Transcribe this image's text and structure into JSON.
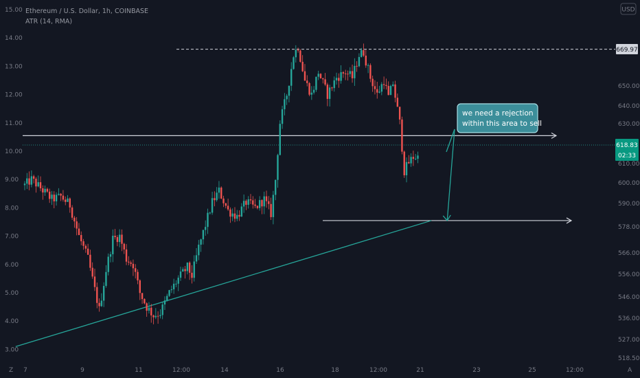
{
  "header": {
    "title": "Ethereum / U.S. Dollar, 1h, COINBASE",
    "indicator": "ATR (14, RMA)"
  },
  "currency_button": "USD",
  "price_tag": {
    "price": "618.83",
    "countdown": "02:33"
  },
  "level_tag": "669.97",
  "annotation": "we need a rejection within this area to sell",
  "annotation_lines": [
    "we need a rejection",
    "within this area to sell"
  ],
  "bottom_left_label": "Z",
  "bottom_right_label": "A",
  "colors": {
    "background": "#131722",
    "up": "#26a69a",
    "down": "#ef5350",
    "trendline": "#26a69a",
    "level": "#d1d4dc",
    "price_tag": "#089981",
    "note_bg": "#3c8e9a"
  },
  "chart_data": {
    "type": "candlestick",
    "title": "Ethereum / U.S. Dollar, 1h, COINBASE",
    "indicator": "ATR (14, RMA)",
    "left_axis": {
      "ticks": [
        "15.00",
        "14.00",
        "13.00",
        "12.00",
        "11.00",
        "10.00",
        "9.00",
        "8.00",
        "7.00",
        "6.00",
        "5.00",
        "4.00",
        "3.00"
      ],
      "range": [
        2.6,
        15.0
      ]
    },
    "right_axis": {
      "ticks": [
        "650.00",
        "640.00",
        "630.00",
        "610.00",
        "600.00",
        "590.00",
        "578.00",
        "566.00",
        "556.00",
        "546.00",
        "536.00",
        "527.00",
        "518.50"
      ]
    },
    "x_axis": {
      "ticks": [
        "7",
        "9",
        "11",
        "12:00",
        "14",
        "16",
        "18",
        "12:00",
        "21",
        "23",
        "25",
        "12:00"
      ]
    },
    "resistance_level": 669.97,
    "current_price": 618.83,
    "candle_count": 175,
    "path": [
      [
        0,
        8.8
      ],
      [
        3,
        9.0
      ],
      [
        7,
        8.7
      ],
      [
        12,
        8.3
      ],
      [
        16,
        8.4
      ],
      [
        20,
        8.1
      ],
      [
        24,
        7.0
      ],
      [
        28,
        6.2
      ],
      [
        31,
        5.1
      ],
      [
        33,
        4.4
      ],
      [
        36,
        5.8
      ],
      [
        39,
        6.9
      ],
      [
        42,
        7.0
      ],
      [
        45,
        6.2
      ],
      [
        48,
        6.0
      ],
      [
        51,
        5.0
      ],
      [
        54,
        4.5
      ],
      [
        57,
        4.2
      ],
      [
        60,
        4.3
      ],
      [
        64,
        5.0
      ],
      [
        68,
        5.5
      ],
      [
        72,
        5.9
      ],
      [
        74,
        5.6
      ],
      [
        77,
        6.6
      ],
      [
        80,
        7.4
      ],
      [
        83,
        8.2
      ],
      [
        86,
        8.6
      ],
      [
        90,
        7.9
      ],
      [
        94,
        7.7
      ],
      [
        98,
        8.2
      ],
      [
        102,
        8.0
      ],
      [
        106,
        8.3
      ],
      [
        109,
        7.8
      ],
      [
        111,
        9.0
      ],
      [
        113,
        11.0
      ],
      [
        116,
        12.0
      ],
      [
        119,
        13.4
      ],
      [
        121,
        13.7
      ],
      [
        124,
        12.5
      ],
      [
        127,
        12.0
      ],
      [
        130,
        12.8
      ],
      [
        134,
        12.0
      ],
      [
        138,
        12.6
      ],
      [
        142,
        12.8
      ],
      [
        145,
        12.6
      ],
      [
        148,
        13.4
      ],
      [
        150,
        13.5
      ],
      [
        153,
        12.6
      ],
      [
        156,
        12.0
      ],
      [
        159,
        12.5
      ],
      [
        161,
        11.9
      ],
      [
        163,
        12.4
      ],
      [
        166,
        11.0
      ],
      [
        168,
        9.3
      ],
      [
        170,
        9.6
      ],
      [
        172,
        9.8
      ],
      [
        174,
        9.8
      ]
    ],
    "levels": [
      {
        "name": "upper-horizontal",
        "value": 10.55
      },
      {
        "name": "lower-horizontal",
        "value": 7.55
      },
      {
        "name": "resistance-dashed",
        "value": 13.6
      }
    ],
    "trendline": {
      "from": [
        -4,
        3.1
      ],
      "to": [
        180,
        7.55
      ]
    },
    "projection": [
      [
        177,
        10.45
      ],
      [
        187,
        7.55
      ]
    ],
    "grid": false,
    "legend": "none"
  }
}
